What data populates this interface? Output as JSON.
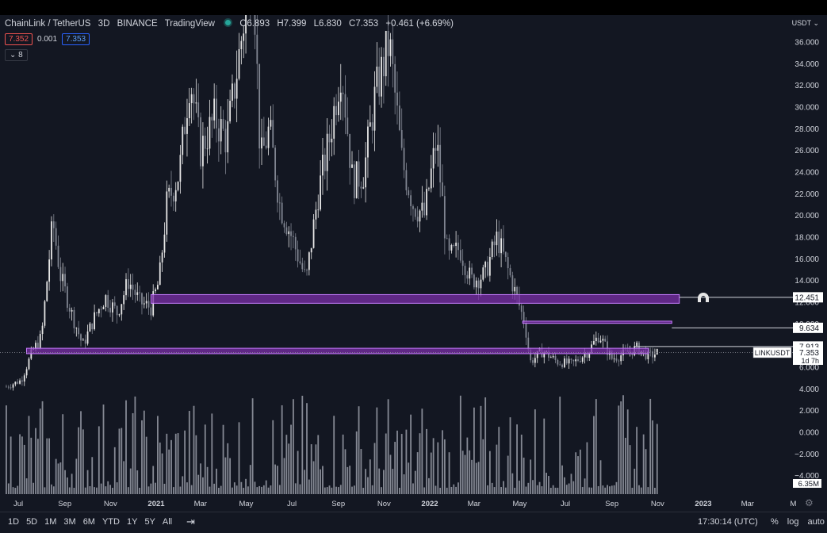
{
  "header": {
    "symbol": "ChainLink / TetherUS",
    "interval": "3D",
    "exchange": "BINANCE",
    "source": "TradingView",
    "ohlc": {
      "o_label": "O",
      "o": "6.893",
      "h_label": "H",
      "h": "7.399",
      "l_label": "L",
      "l": "6.830",
      "c_label": "C",
      "c": "7.353",
      "change": "+0.461 (+6.69%)"
    },
    "sell_price": "7.352",
    "spread": "0.001",
    "buy_price": "7.353",
    "collapsed_indicators": "8"
  },
  "currency": "USDT",
  "colors": {
    "background": "#131722",
    "candle_up": "#e6e6e6",
    "candle_down": "#808591",
    "volume": "#9a9ea8",
    "zone_fill": "#7b2fa8",
    "zone_border": "#c77dff"
  },
  "chart_data": {
    "type": "candlestick",
    "title": "ChainLink / TetherUS, 3D, BINANCE",
    "xlabel": "",
    "ylabel": "USDT",
    "ylim": [
      -5,
      38
    ],
    "y_ticks": [
      "36.000",
      "34.000",
      "32.000",
      "30.000",
      "28.000",
      "26.000",
      "24.000",
      "22.000",
      "20.000",
      "18.000",
      "16.000",
      "14.000",
      "12.000",
      "10.000",
      "8.000",
      "6.000",
      "4.000",
      "2.000",
      "0.000",
      "−2.000",
      "−4.000"
    ],
    "x_ticks": [
      "Jul",
      "Sep",
      "Nov",
      "2021",
      "Mar",
      "May",
      "Jul",
      "Sep",
      "Nov",
      "2022",
      "Mar",
      "May",
      "Jul",
      "Sep",
      "Nov",
      "2023",
      "Mar",
      "M"
    ],
    "price_path": [
      {
        "d": "2020-06-15",
        "v": 4.2
      },
      {
        "d": "2020-07-05",
        "v": 4.8
      },
      {
        "d": "2020-07-20",
        "v": 7.5
      },
      {
        "d": "2020-08-01",
        "v": 8.8
      },
      {
        "d": "2020-08-16",
        "v": 19.5
      },
      {
        "d": "2020-08-26",
        "v": 14.5
      },
      {
        "d": "2020-09-10",
        "v": 11.0
      },
      {
        "d": "2020-09-25",
        "v": 8.0
      },
      {
        "d": "2020-10-10",
        "v": 10.5
      },
      {
        "d": "2020-10-25",
        "v": 12.5
      },
      {
        "d": "2020-11-10",
        "v": 11.0
      },
      {
        "d": "2020-11-25",
        "v": 14.0
      },
      {
        "d": "2020-12-10",
        "v": 12.0
      },
      {
        "d": "2020-12-25",
        "v": 11.5
      },
      {
        "d": "2021-01-05",
        "v": 14.0
      },
      {
        "d": "2021-01-15",
        "v": 21.0
      },
      {
        "d": "2021-02-01",
        "v": 24.0
      },
      {
        "d": "2021-02-15",
        "v": 33.0
      },
      {
        "d": "2021-03-01",
        "v": 26.0
      },
      {
        "d": "2021-03-20",
        "v": 29.0
      },
      {
        "d": "2021-04-05",
        "v": 27.0
      },
      {
        "d": "2021-04-20",
        "v": 34.0
      },
      {
        "d": "2021-05-10",
        "v": 44.0
      },
      {
        "d": "2021-05-20",
        "v": 25.0
      },
      {
        "d": "2021-06-01",
        "v": 28.0
      },
      {
        "d": "2021-06-15",
        "v": 21.0
      },
      {
        "d": "2021-07-01",
        "v": 18.0
      },
      {
        "d": "2021-07-20",
        "v": 14.0
      },
      {
        "d": "2021-08-05",
        "v": 22.0
      },
      {
        "d": "2021-08-20",
        "v": 27.0
      },
      {
        "d": "2021-09-05",
        "v": 34.0
      },
      {
        "d": "2021-09-20",
        "v": 23.0
      },
      {
        "d": "2021-10-05",
        "v": 24.0
      },
      {
        "d": "2021-10-20",
        "v": 31.0
      },
      {
        "d": "2021-11-08",
        "v": 36.0
      },
      {
        "d": "2021-11-25",
        "v": 25.0
      },
      {
        "d": "2021-12-10",
        "v": 21.0
      },
      {
        "d": "2021-12-25",
        "v": 20.0
      },
      {
        "d": "2022-01-10",
        "v": 27.0
      },
      {
        "d": "2022-01-25",
        "v": 16.0
      },
      {
        "d": "2022-02-10",
        "v": 17.0
      },
      {
        "d": "2022-02-25",
        "v": 14.0
      },
      {
        "d": "2022-03-15",
        "v": 14.5
      },
      {
        "d": "2022-04-01",
        "v": 18.0
      },
      {
        "d": "2022-04-20",
        "v": 14.0
      },
      {
        "d": "2022-05-08",
        "v": 10.0
      },
      {
        "d": "2022-05-15",
        "v": 6.5
      },
      {
        "d": "2022-06-01",
        "v": 7.5
      },
      {
        "d": "2022-06-20",
        "v": 6.5
      },
      {
        "d": "2022-07-10",
        "v": 6.3
      },
      {
        "d": "2022-08-01",
        "v": 7.5
      },
      {
        "d": "2022-08-15",
        "v": 9.0
      },
      {
        "d": "2022-09-01",
        "v": 6.8
      },
      {
        "d": "2022-09-20",
        "v": 7.3
      },
      {
        "d": "2022-10-05",
        "v": 7.8
      },
      {
        "d": "2022-10-20",
        "v": 7.0
      },
      {
        "d": "2022-11-01",
        "v": 7.35
      }
    ],
    "zones": [
      {
        "from": "2020-12-25",
        "to": "2022-11-30",
        "low": 11.9,
        "high": 12.7
      },
      {
        "from": "2022-05-05",
        "to": "2022-11-20",
        "low": 10.05,
        "high": 10.25
      },
      {
        "from": "2020-07-12",
        "to": "2022-10-20",
        "low": 7.25,
        "high": 7.75
      }
    ],
    "level_lines": [
      {
        "label": "12.451",
        "value": 12.451
      },
      {
        "label": "9.634",
        "value": 9.634
      },
      {
        "label": "7.913",
        "value": 7.913
      }
    ],
    "last_price": {
      "symbol": "LINKUSDT",
      "value": "7.353",
      "countdown": "1d 7h"
    },
    "volume_label": "6.35M"
  },
  "bottom": {
    "ranges": [
      "1D",
      "5D",
      "1M",
      "3M",
      "6M",
      "YTD",
      "1Y",
      "5Y",
      "All"
    ],
    "time": "17:30:14 (UTC)",
    "options": [
      "%",
      "log",
      "auto"
    ]
  }
}
